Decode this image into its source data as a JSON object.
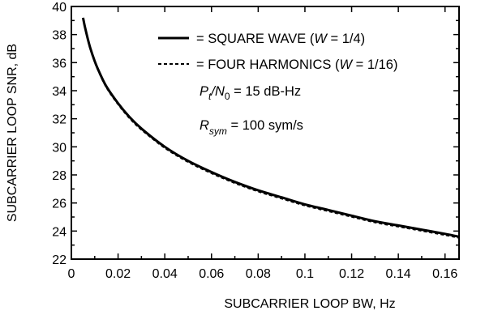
{
  "chart_data": {
    "type": "line",
    "xlabel": "SUBCARRIER LOOP BW, Hz",
    "ylabel": "SUBCARRIER LOOP SNR, dB",
    "xlim": [
      0,
      0.166
    ],
    "ylim": [
      22,
      40
    ],
    "xticks": [
      0,
      0.02,
      0.04,
      0.06,
      0.08,
      0.1,
      0.12,
      0.14,
      0.16
    ],
    "xtick_labels": [
      "0",
      "0.02",
      "0.04",
      "0.06",
      "0.08",
      "0.1",
      "0.12",
      "0.14",
      "0.16"
    ],
    "yticks": [
      22,
      24,
      26,
      28,
      30,
      32,
      34,
      36,
      38,
      40
    ],
    "ytick_labels": [
      "22",
      "24",
      "26",
      "28",
      "30",
      "32",
      "34",
      "36",
      "38",
      "40"
    ],
    "grid": false,
    "legend_position": "top-right",
    "series": [
      {
        "name": "= SQUARE WAVE (W = 1/4)",
        "style": "solid",
        "x": [
          0.005,
          0.006,
          0.008,
          0.01,
          0.012,
          0.015,
          0.02,
          0.025,
          0.03,
          0.04,
          0.05,
          0.06,
          0.07,
          0.08,
          0.09,
          0.1,
          0.11,
          0.12,
          0.13,
          0.14,
          0.15,
          0.16,
          0.166
        ],
        "y": [
          39.2,
          38.4,
          37.1,
          36.1,
          35.3,
          34.3,
          33.1,
          32.1,
          31.3,
          30.0,
          29.0,
          28.2,
          27.5,
          26.9,
          26.4,
          25.9,
          25.5,
          25.1,
          24.7,
          24.4,
          24.1,
          23.8,
          23.6
        ]
      },
      {
        "name": "= FOUR HARMONICS (W = 1/16)",
        "style": "dashed",
        "x": [
          0.005,
          0.006,
          0.008,
          0.01,
          0.012,
          0.015,
          0.02,
          0.025,
          0.03,
          0.04,
          0.05,
          0.06,
          0.07,
          0.08,
          0.09,
          0.1,
          0.11,
          0.12,
          0.13,
          0.14,
          0.15,
          0.16,
          0.166
        ],
        "y": [
          39.1,
          38.3,
          37.0,
          36.0,
          35.2,
          34.2,
          33.0,
          32.0,
          31.2,
          29.9,
          28.9,
          28.1,
          27.4,
          26.8,
          26.3,
          25.8,
          25.4,
          25.0,
          24.6,
          24.3,
          24.0,
          23.7,
          23.5
        ]
      }
    ],
    "legend_labels": {
      "square": "= SQUARE WAVE (",
      "square_var": "W",
      "square_tail": " = 1/4)",
      "four": "= FOUR HARMONICS (",
      "four_var": "W",
      "four_tail": " = 1/16)"
    },
    "annotations": {
      "pt_main": "P",
      "pt_sub": "t",
      "n0_main": "/N",
      "n0_sub": "0",
      "pt_value": " = 15 dB-Hz",
      "rsym_main": "R",
      "rsym_sub": "sym",
      "rsym_value": " = 100 sym/s"
    }
  }
}
